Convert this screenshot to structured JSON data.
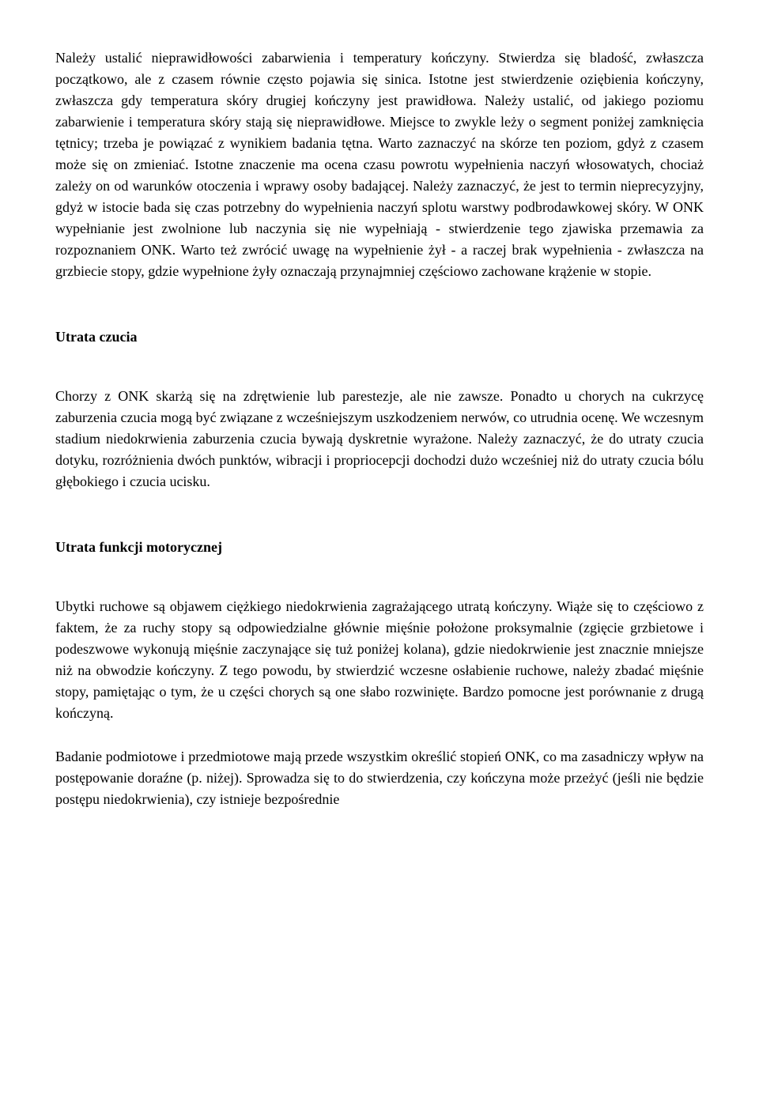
{
  "document": {
    "paragraphs": [
      "Należy ustalić nieprawidłowości zabarwienia i temperatury kończyny. Stwierdza się bladość, zwłaszcza początkowo, ale z czasem równie często pojawia się sinica. Istotne jest stwierdzenie oziębienia kończyny, zwłaszcza gdy temperatura skóry drugiej kończyny jest prawidłowa. Należy ustalić, od jakiego poziomu zabarwienie i temperatura skóry stają się nieprawidłowe. Miejsce to zwykle leży o segment poniżej zamknięcia tętnicy; trzeba je powiązać z wynikiem badania tętna. Warto zaznaczyć na skórze ten poziom, gdyż z czasem może się on zmieniać. Istotne znaczenie ma ocena czasu powrotu wypełnienia naczyń włosowatych, chociaż zależy on od warunków otoczenia i wprawy osoby badającej. Należy zaznaczyć, że jest to termin nieprecyzyjny, gdyż w istocie bada się czas potrzebny do wypełnienia naczyń splotu warstwy podbrodawkowej skóry. W ONK wypełnianie jest zwolnione lub naczynia się nie wypełniają - stwierdzenie tego zjawiska przemawia za rozpoznaniem ONK. Warto też zwrócić uwagę na wypełnienie żył - a raczej brak wypełnienia - zwłaszcza na grzbiecie stopy, gdzie wypełnione żyły oznaczają przynajmniej częściowo zachowane krążenie w stopie."
    ],
    "sections": [
      {
        "heading": "Utrata czucia",
        "paragraphs": [
          "Chorzy z ONK skarżą się na zdrętwienie lub parestezje, ale nie zawsze. Ponadto u chorych na cukrzycę zaburzenia czucia mogą być związane z wcześniejszym uszkodzeniem nerwów, co utrudnia ocenę. We wczesnym stadium niedokrwienia zaburzenia czucia bywają dyskretnie wyrażone. Należy zaznaczyć, że do utraty czucia dotyku, rozróżnienia dwóch punktów, wibracji i propriocepcji dochodzi dużo wcześniej niż do utraty czucia bólu głębokiego i czucia ucisku."
        ]
      },
      {
        "heading": "Utrata funkcji motorycznej",
        "paragraphs": [
          "Ubytki ruchowe są objawem ciężkiego niedokrwienia zagrażającego utratą kończyny. Wiąże się to częściowo z faktem, że za ruchy stopy są odpowiedzialne głównie mięśnie położone proksymalnie (zgięcie grzbietowe i podeszwowe wykonują mięśnie zaczynające się tuż poniżej kolana), gdzie niedokrwienie jest znacznie mniejsze niż na obwodzie kończyny. Z tego powodu, by stwierdzić wczesne osłabienie ruchowe, należy zbadać mięśnie stopy, pamiętając o tym, że u części chorych są one słabo rozwinięte. Bardzo pomocne jest porównanie z drugą kończyną.",
          "Badanie podmiotowe i przedmiotowe mają przede wszystkim określić stopień ONK, co ma zasadniczy wpływ na postępowanie doraźne (p. niżej). Sprowadza się to do stwierdzenia, czy kończyna może przeżyć (jeśli nie będzie postępu niedokrwienia), czy istnieje bezpośrednie"
        ]
      }
    ]
  }
}
